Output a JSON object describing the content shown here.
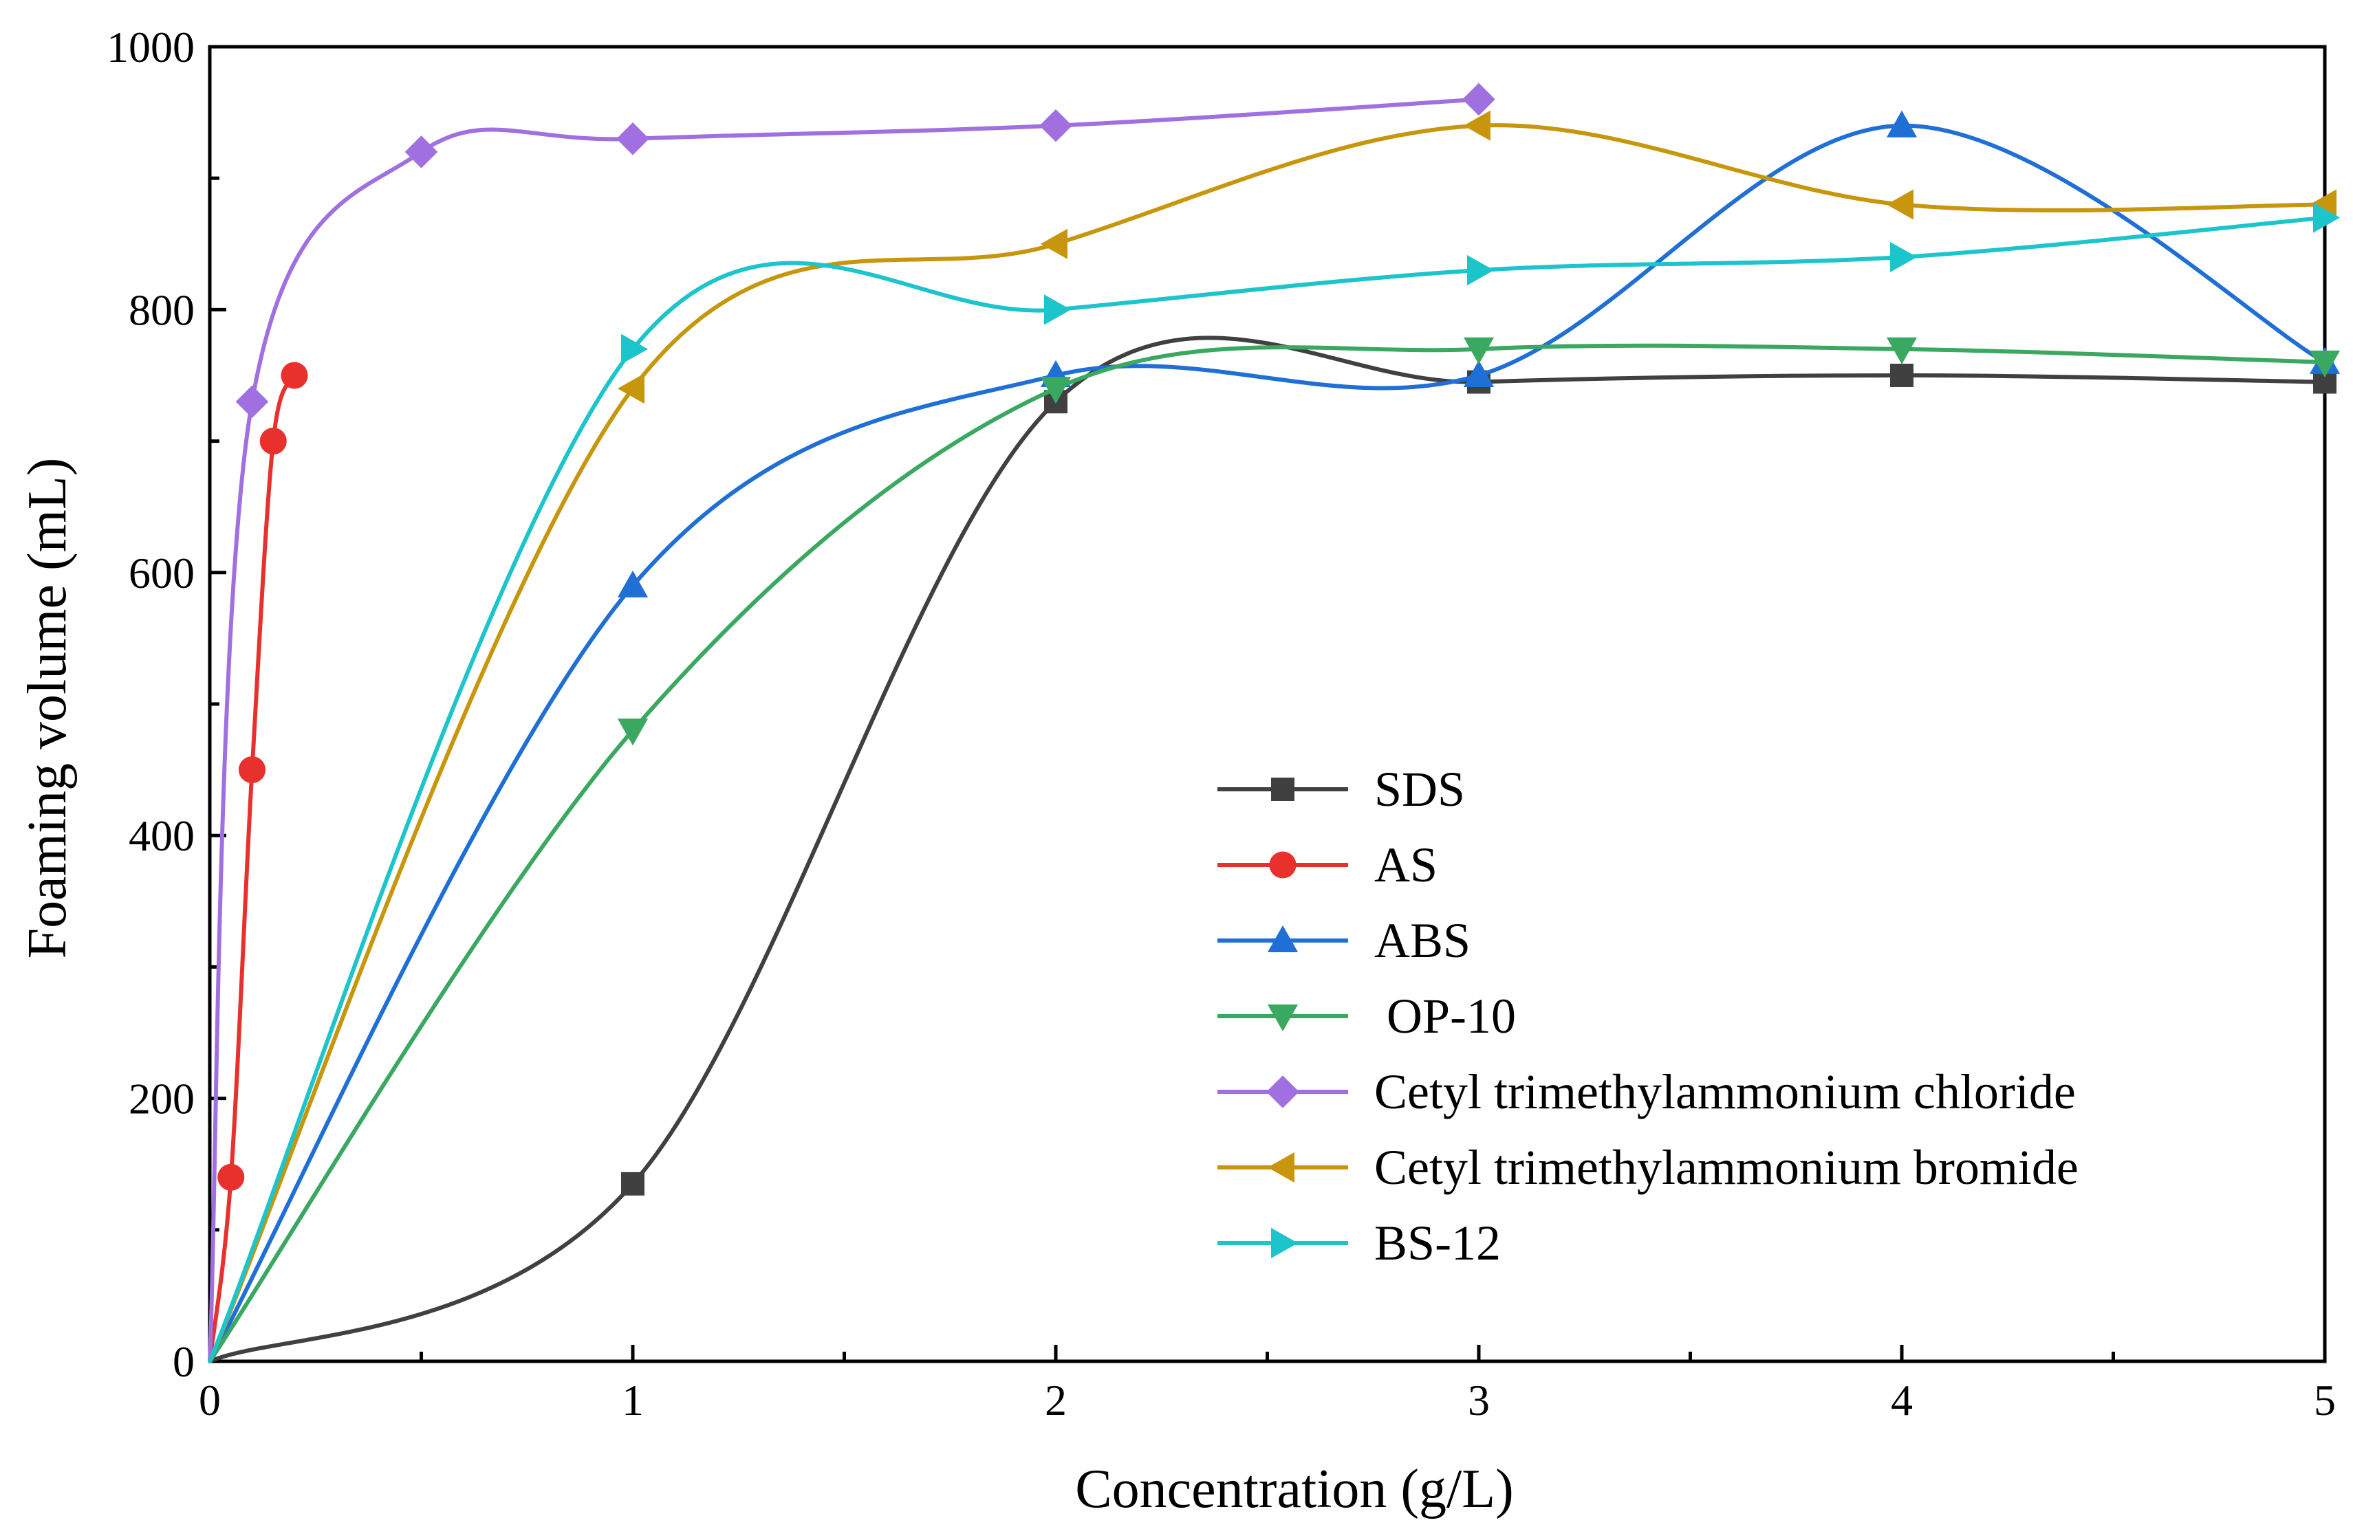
{
  "chart_data": {
    "type": "line",
    "title": "",
    "xlabel": "Concentration (g/L)",
    "ylabel": "Foaming volume (mL)",
    "xlim": [
      0,
      5
    ],
    "ylim": [
      0,
      1000
    ],
    "xticks": [
      0,
      1,
      2,
      3,
      4,
      5
    ],
    "yticks": [
      0,
      200,
      400,
      600,
      800,
      1000
    ],
    "grid": false,
    "legend_position": "center-right",
    "series": [
      {
        "name": "SDS",
        "color": "#404040",
        "marker": "square",
        "x": [
          0,
          1,
          2,
          3,
          4,
          5
        ],
        "y": [
          0,
          135,
          730,
          745,
          750,
          745
        ]
      },
      {
        "name": "AS",
        "color": "#e8302c",
        "marker": "circle",
        "x": [
          0,
          0.05,
          0.1,
          0.15,
          0.2
        ],
        "y": [
          0,
          140,
          450,
          700,
          750
        ]
      },
      {
        "name": "ABS",
        "color": "#1f6fd6",
        "marker": "triangle-up",
        "x": [
          0,
          1,
          2,
          3,
          4,
          5
        ],
        "y": [
          0,
          590,
          750,
          750,
          940,
          760
        ]
      },
      {
        "name": " OP-10",
        "color": "#3aa860",
        "marker": "triangle-down",
        "x": [
          0,
          1,
          2,
          3,
          4,
          5
        ],
        "y": [
          0,
          480,
          740,
          770,
          770,
          760
        ]
      },
      {
        "name": "Cetyl trimethylammonium chloride",
        "color": "#a070e0",
        "marker": "diamond",
        "x": [
          0,
          0.1,
          0.5,
          1,
          2,
          3
        ],
        "y": [
          0,
          730,
          920,
          930,
          940,
          960
        ]
      },
      {
        "name": "Cetyl trimethylammonium bromide",
        "color": "#c8960c",
        "marker": "triangle-left",
        "x": [
          0,
          1,
          2,
          3,
          4,
          5
        ],
        "y": [
          0,
          740,
          850,
          940,
          880,
          880
        ]
      },
      {
        "name": "BS-12",
        "color": "#1cc4cc",
        "marker": "triangle-right",
        "x": [
          0,
          1,
          2,
          3,
          4,
          5
        ],
        "y": [
          0,
          770,
          800,
          830,
          840,
          870
        ]
      }
    ]
  }
}
